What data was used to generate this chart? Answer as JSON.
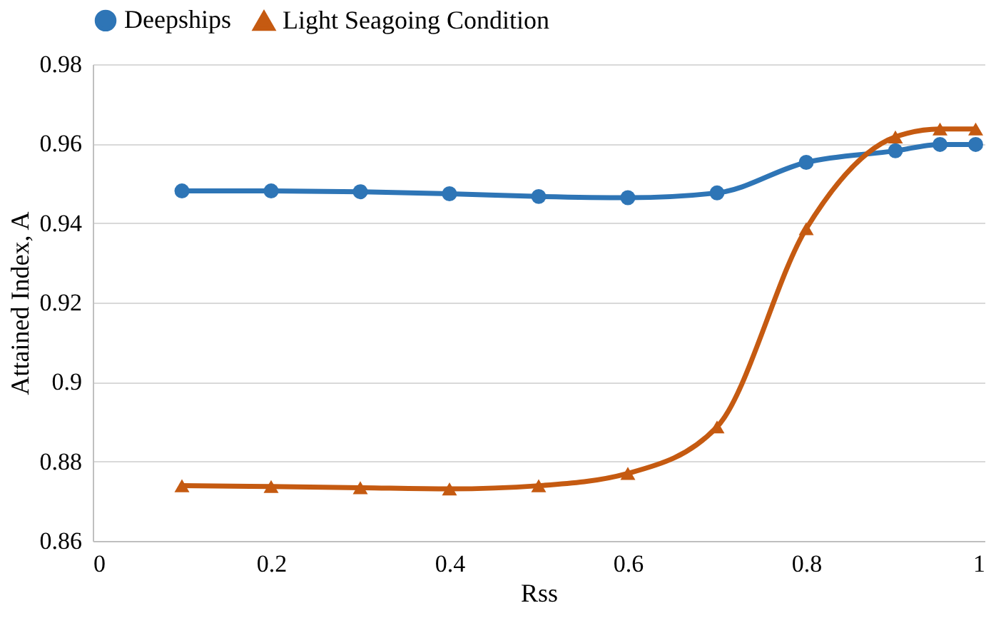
{
  "chart_data": {
    "type": "line",
    "xlabel": "Rss",
    "ylabel": "Attained Index, A",
    "x": [
      0.1,
      0.2,
      0.3,
      0.4,
      0.5,
      0.6,
      0.7,
      0.8,
      0.9,
      0.95,
      0.99
    ],
    "series": [
      {
        "name": "Deepships",
        "color": "#2e75b6",
        "marker": "circle",
        "values": [
          0.9481,
          0.9481,
          0.9479,
          0.9474,
          0.9467,
          0.9464,
          0.9476,
          0.9553,
          0.9582,
          0.9598,
          0.9598
        ]
      },
      {
        "name": "Light Seagoing Condition",
        "color": "#c55a11",
        "marker": "triangle",
        "values": [
          0.8739,
          0.8737,
          0.8734,
          0.8731,
          0.8739,
          0.877,
          0.8887,
          0.9386,
          0.9617,
          0.9637,
          0.9637
        ]
      }
    ],
    "xlim": [
      0,
      1
    ],
    "xticks": [
      0,
      0.2,
      0.4,
      0.6,
      0.8,
      1
    ],
    "ylim": [
      0.86,
      0.98
    ],
    "yticks": [
      0.86,
      0.88,
      0.9,
      0.92,
      0.94,
      0.96,
      0.98
    ],
    "grid": "y",
    "legend": "top",
    "line_style": "solid"
  }
}
